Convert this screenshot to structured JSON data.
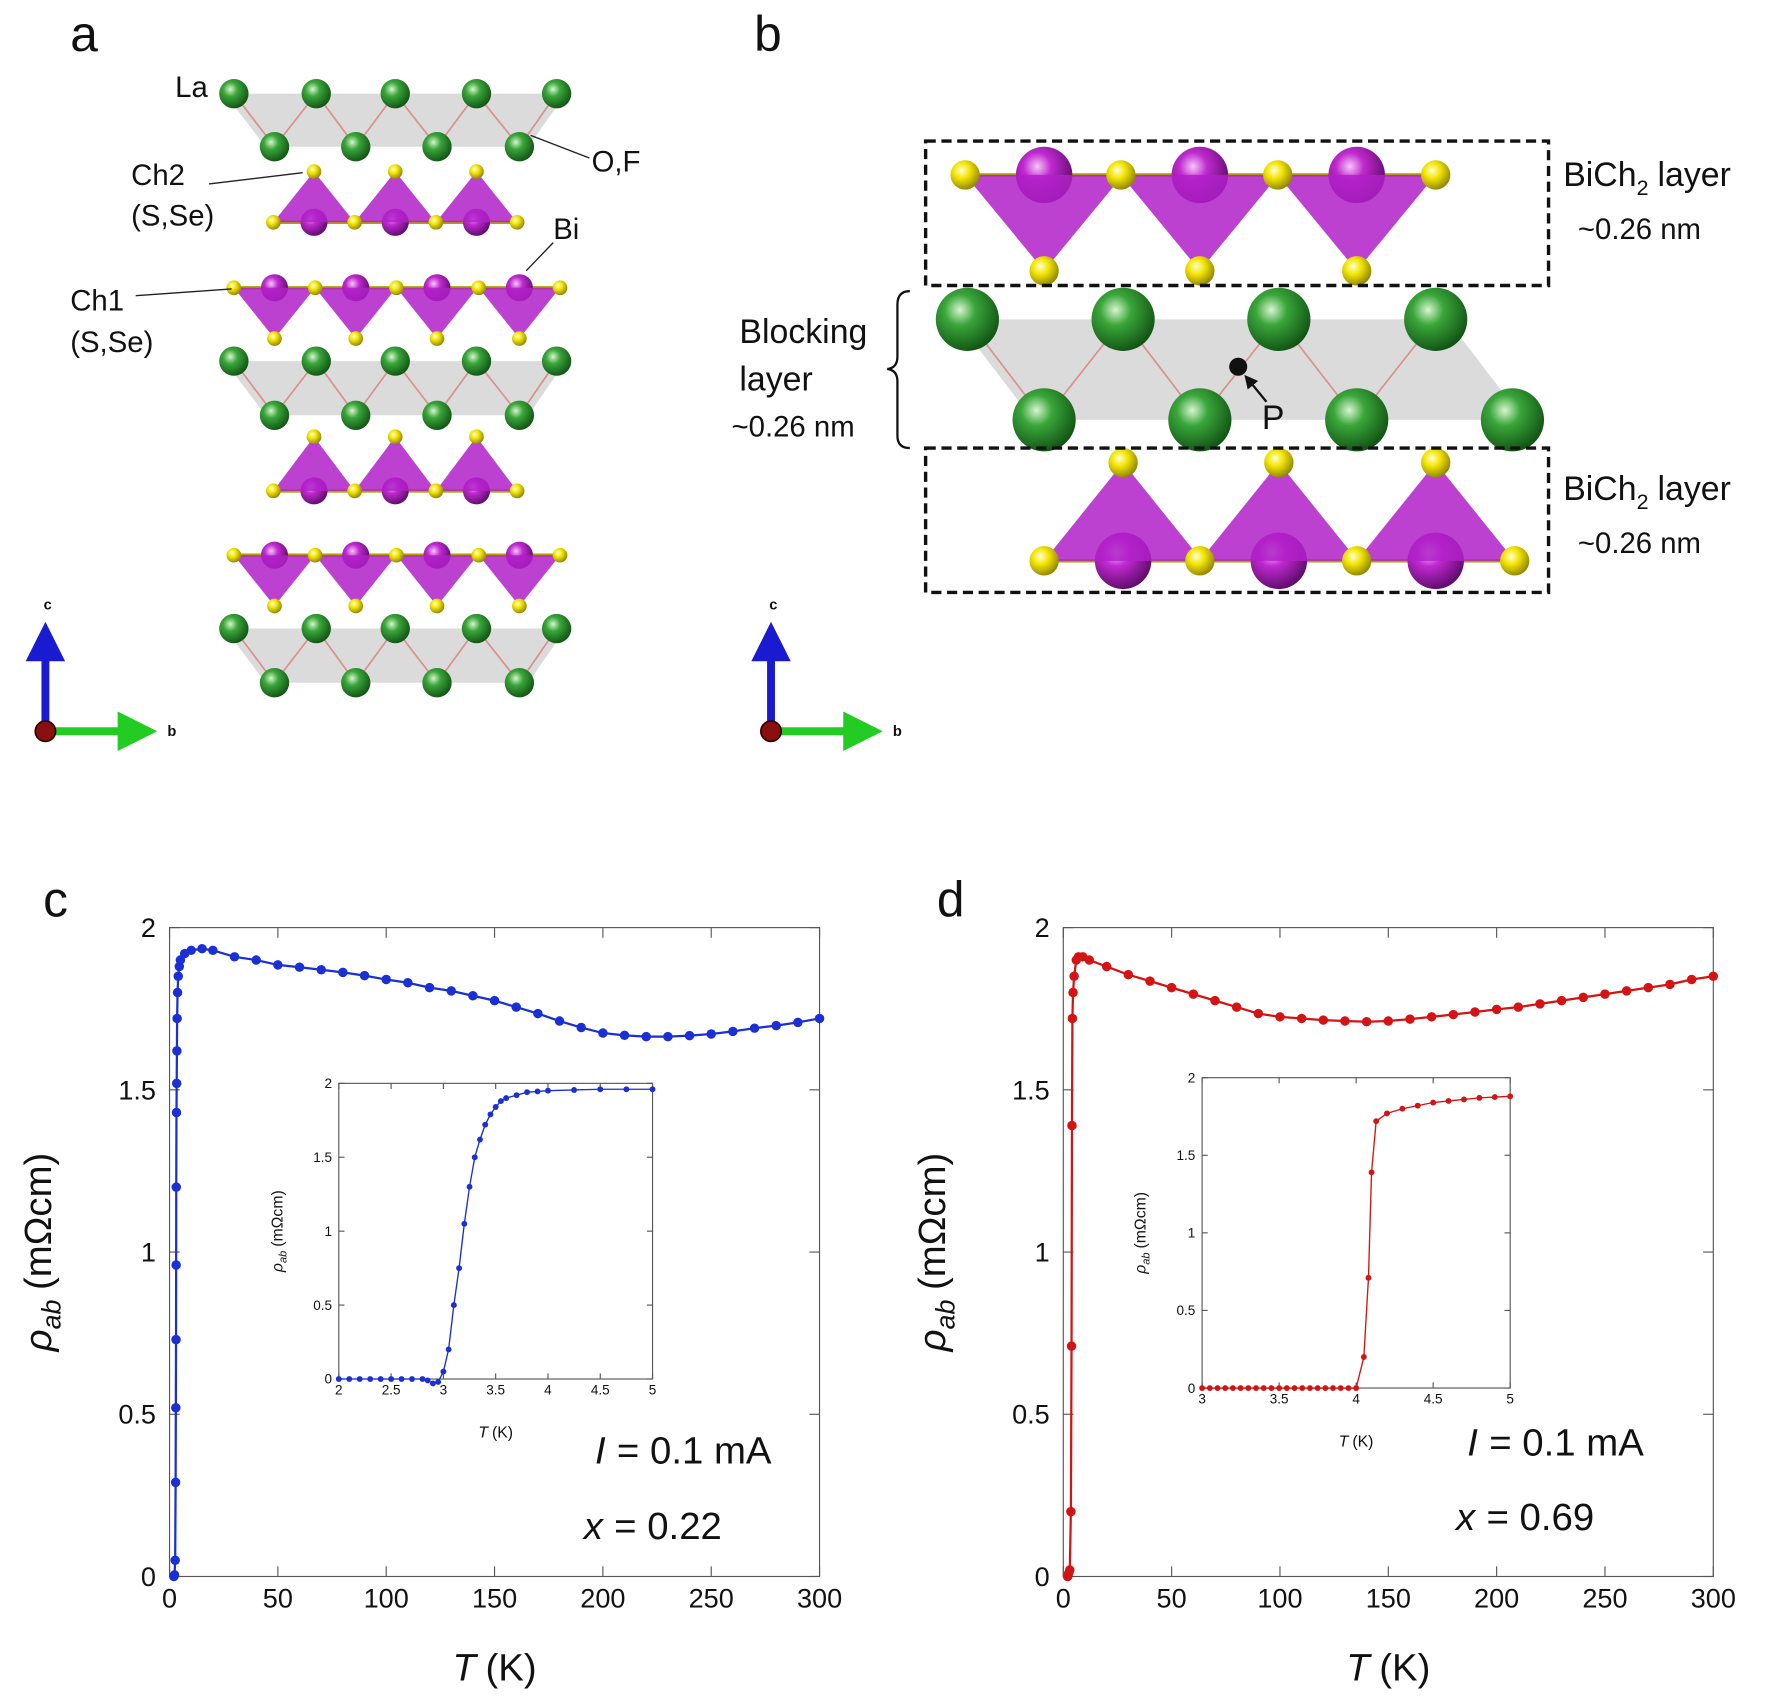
{
  "diagrams": [
    {
      "panel": "a",
      "labels": {
        "la": "La",
        "ch2": "Ch2",
        "ch2_elements": "(S,Se)",
        "of": "O,F",
        "bi": "Bi",
        "ch1": "Ch1",
        "ch1_elements": "(S,Se)"
      },
      "axes": [
        "c",
        "b"
      ]
    },
    {
      "panel": "b",
      "layers": [
        {
          "name": {
            "text": "BiCh",
            "subscript": "2",
            "suffix": "layer"
          },
          "thickness": "~0.26 nm"
        },
        {
          "name": {
            "text": "BiCh",
            "subscript": "2",
            "suffix": "layer"
          },
          "thickness": "~0.26 nm"
        }
      ],
      "blocking": {
        "lines": [
          "Blocking",
          "layer"
        ],
        "thickness": "~0.26 nm"
      },
      "p_label": "P",
      "axes": [
        "c",
        "b"
      ]
    }
  ],
  "chart_data": [
    {
      "type": "line",
      "panel": "c",
      "x_label": {
        "symbol": "T",
        "unit": "(K)"
      },
      "y_label": {
        "symbol": "ρ",
        "subscript": "ab",
        "unit": "(mΩcm)"
      },
      "xlim": [
        0,
        300
      ],
      "ylim": [
        0,
        2
      ],
      "xticks": [
        0,
        50,
        100,
        150,
        200,
        250,
        300
      ],
      "yticks": [
        0,
        0.5,
        1,
        1.5,
        2
      ],
      "series": [
        {
          "color": "#1a2fd4",
          "x": [
            2,
            2.3,
            2.6,
            2.8,
            2.9,
            3.0,
            3.05,
            3.1,
            3.2,
            3.3,
            3.4,
            3.5,
            3.7,
            4,
            4.5,
            5,
            7,
            10,
            15,
            20,
            30,
            40,
            50,
            60,
            70,
            80,
            90,
            100,
            110,
            120,
            130,
            140,
            150,
            160,
            170,
            180,
            190,
            200,
            210,
            220,
            230,
            240,
            250,
            260,
            270,
            280,
            290,
            300
          ],
          "values": [
            0,
            0.005,
            0.05,
            0.29,
            0.52,
            0.73,
            0.96,
            1.2,
            1.43,
            1.52,
            1.62,
            1.72,
            1.8,
            1.85,
            1.88,
            1.9,
            1.92,
            1.93,
            1.935,
            1.93,
            1.91,
            1.9,
            1.885,
            1.878,
            1.87,
            1.862,
            1.852,
            1.84,
            1.83,
            1.815,
            1.805,
            1.79,
            1.775,
            1.755,
            1.735,
            1.712,
            1.692,
            1.675,
            1.668,
            1.664,
            1.664,
            1.667,
            1.672,
            1.68,
            1.69,
            1.698,
            1.708,
            1.72
          ]
        }
      ],
      "annotations": [
        {
          "variable": "I",
          "text": "= 0.1 mA"
        },
        {
          "variable": "x",
          "text": "= 0.22"
        }
      ]
    },
    {
      "type": "line",
      "x_label": {
        "symbol": "T",
        "unit": "(K)"
      },
      "y_label": {
        "symbol": "ρ",
        "subscript": "ab",
        "unit": "(mΩcm)"
      },
      "xlim": [
        2,
        5
      ],
      "ylim": [
        0,
        2
      ],
      "xticks": [
        2,
        2.5,
        3,
        3.5,
        4,
        4.5,
        5
      ],
      "yticks": [
        0,
        0.5,
        1,
        1.5,
        2
      ],
      "series": [
        {
          "color": "#1a2fd4",
          "x": [
            2,
            2.1,
            2.2,
            2.3,
            2.4,
            2.5,
            2.6,
            2.7,
            2.8,
            2.85,
            2.9,
            2.95,
            3.0,
            3.05,
            3.1,
            3.15,
            3.2,
            3.25,
            3.3,
            3.35,
            3.4,
            3.45,
            3.5,
            3.55,
            3.6,
            3.7,
            3.8,
            3.9,
            4,
            4.25,
            4.5,
            4.75,
            5
          ],
          "values": [
            0,
            0,
            0,
            0,
            0,
            0,
            0,
            0,
            0,
            -0.01,
            -0.03,
            -0.02,
            0.05,
            0.2,
            0.5,
            0.75,
            1.05,
            1.3,
            1.5,
            1.62,
            1.72,
            1.79,
            1.84,
            1.88,
            1.9,
            1.92,
            1.94,
            1.945,
            1.95,
            1.955,
            1.96,
            1.96,
            1.96
          ]
        }
      ]
    },
    {
      "type": "line",
      "panel": "d",
      "x_label": {
        "symbol": "T",
        "unit": "(K)"
      },
      "y_label": {
        "symbol": "ρ",
        "subscript": "ab",
        "unit": "(mΩcm)"
      },
      "xlim": [
        0,
        300
      ],
      "ylim": [
        0,
        2
      ],
      "xticks": [
        0,
        50,
        100,
        150,
        200,
        250,
        300
      ],
      "yticks": [
        0,
        0.5,
        1,
        1.5,
        2
      ],
      "series": [
        {
          "color": "#d41414",
          "x": [
            2,
            2.5,
            3,
            3.5,
            3.8,
            4,
            4.2,
            4.5,
            5,
            6,
            7,
            9,
            12,
            20,
            30,
            40,
            50,
            60,
            70,
            80,
            90,
            100,
            110,
            120,
            130,
            140,
            150,
            160,
            170,
            180,
            190,
            200,
            210,
            220,
            230,
            240,
            250,
            260,
            270,
            280,
            290,
            300
          ],
          "values": [
            0,
            0.01,
            0.02,
            0.2,
            0.71,
            1.39,
            1.72,
            1.8,
            1.85,
            1.9,
            1.91,
            1.91,
            1.9,
            1.88,
            1.855,
            1.835,
            1.815,
            1.795,
            1.775,
            1.755,
            1.735,
            1.725,
            1.72,
            1.715,
            1.712,
            1.71,
            1.712,
            1.718,
            1.725,
            1.732,
            1.74,
            1.748,
            1.755,
            1.765,
            1.775,
            1.785,
            1.795,
            1.805,
            1.815,
            1.825,
            1.84,
            1.85
          ]
        }
      ],
      "annotations": [
        {
          "variable": "I",
          "text": "= 0.1 mA"
        },
        {
          "variable": "x",
          "text": "= 0.69"
        }
      ]
    },
    {
      "type": "line",
      "x_label": {
        "symbol": "T",
        "unit": "(K)"
      },
      "y_label": {
        "symbol": "ρ",
        "subscript": "ab",
        "unit": "(mΩcm)"
      },
      "xlim": [
        3,
        5
      ],
      "ylim": [
        0,
        2
      ],
      "xticks": [
        3,
        3.5,
        4,
        4.5,
        5
      ],
      "yticks": [
        0,
        0.5,
        1,
        1.5,
        2
      ],
      "series": [
        {
          "color": "#d41414",
          "x": [
            3,
            3.05,
            3.1,
            3.15,
            3.2,
            3.25,
            3.3,
            3.35,
            3.4,
            3.45,
            3.5,
            3.55,
            3.6,
            3.65,
            3.7,
            3.75,
            3.8,
            3.85,
            3.9,
            3.95,
            4,
            4.05,
            4.08,
            4.1,
            4.13,
            4.2,
            4.3,
            4.4,
            4.5,
            4.6,
            4.7,
            4.8,
            4.9,
            5
          ],
          "values": [
            0,
            0,
            0,
            0,
            0,
            0,
            0,
            0,
            0,
            0,
            0,
            0,
            0,
            0,
            0,
            0,
            0,
            0,
            0,
            0,
            0,
            0.2,
            0.71,
            1.39,
            1.72,
            1.77,
            1.8,
            1.82,
            1.84,
            1.85,
            1.86,
            1.87,
            1.875,
            1.88
          ]
        }
      ]
    }
  ]
}
